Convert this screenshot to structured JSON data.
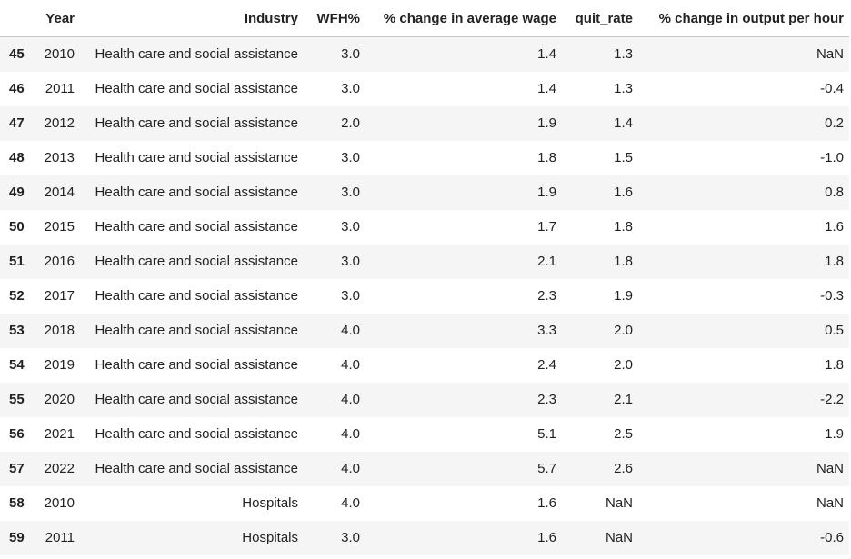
{
  "table": {
    "columns": [
      "",
      "Year",
      "Industry",
      "WFH%",
      "% change in average wage",
      "quit_rate",
      "% change in output per hour"
    ],
    "rows": [
      {
        "index": "45",
        "year": "2010",
        "industry": "Health care and social assistance",
        "wfh": "3.0",
        "wage": "1.4",
        "quit": "1.3",
        "output": "NaN"
      },
      {
        "index": "46",
        "year": "2011",
        "industry": "Health care and social assistance",
        "wfh": "3.0",
        "wage": "1.4",
        "quit": "1.3",
        "output": "-0.4"
      },
      {
        "index": "47",
        "year": "2012",
        "industry": "Health care and social assistance",
        "wfh": "2.0",
        "wage": "1.9",
        "quit": "1.4",
        "output": "0.2"
      },
      {
        "index": "48",
        "year": "2013",
        "industry": "Health care and social assistance",
        "wfh": "3.0",
        "wage": "1.8",
        "quit": "1.5",
        "output": "-1.0"
      },
      {
        "index": "49",
        "year": "2014",
        "industry": "Health care and social assistance",
        "wfh": "3.0",
        "wage": "1.9",
        "quit": "1.6",
        "output": "0.8"
      },
      {
        "index": "50",
        "year": "2015",
        "industry": "Health care and social assistance",
        "wfh": "3.0",
        "wage": "1.7",
        "quit": "1.8",
        "output": "1.6"
      },
      {
        "index": "51",
        "year": "2016",
        "industry": "Health care and social assistance",
        "wfh": "3.0",
        "wage": "2.1",
        "quit": "1.8",
        "output": "1.8"
      },
      {
        "index": "52",
        "year": "2017",
        "industry": "Health care and social assistance",
        "wfh": "3.0",
        "wage": "2.3",
        "quit": "1.9",
        "output": "-0.3"
      },
      {
        "index": "53",
        "year": "2018",
        "industry": "Health care and social assistance",
        "wfh": "4.0",
        "wage": "3.3",
        "quit": "2.0",
        "output": "0.5"
      },
      {
        "index": "54",
        "year": "2019",
        "industry": "Health care and social assistance",
        "wfh": "4.0",
        "wage": "2.4",
        "quit": "2.0",
        "output": "1.8"
      },
      {
        "index": "55",
        "year": "2020",
        "industry": "Health care and social assistance",
        "wfh": "4.0",
        "wage": "2.3",
        "quit": "2.1",
        "output": "-2.2"
      },
      {
        "index": "56",
        "year": "2021",
        "industry": "Health care and social assistance",
        "wfh": "4.0",
        "wage": "5.1",
        "quit": "2.5",
        "output": "1.9"
      },
      {
        "index": "57",
        "year": "2022",
        "industry": "Health care and social assistance",
        "wfh": "4.0",
        "wage": "5.7",
        "quit": "2.6",
        "output": "NaN"
      },
      {
        "index": "58",
        "year": "2010",
        "industry": "Hospitals",
        "wfh": "4.0",
        "wage": "1.6",
        "quit": "NaN",
        "output": "NaN"
      },
      {
        "index": "59",
        "year": "2011",
        "industry": "Hospitals",
        "wfh": "3.0",
        "wage": "1.6",
        "quit": "NaN",
        "output": "-0.6"
      }
    ]
  }
}
